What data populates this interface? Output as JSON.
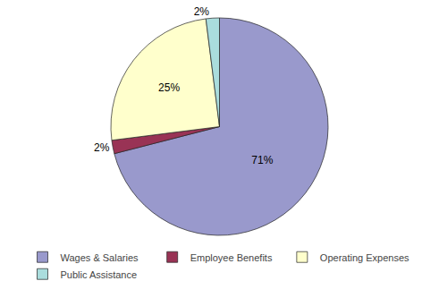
{
  "chart_data": {
    "type": "pie",
    "categories": [
      "Wages & Salaries",
      "Employee Benefits",
      "Operating Expenses",
      "Public Assistance"
    ],
    "values": [
      71,
      2,
      25,
      2
    ],
    "value_labels": [
      "71%",
      "2%",
      "25%",
      "2%"
    ],
    "colors": [
      "#9999cc",
      "#993355",
      "#ffffcc",
      "#aadddd"
    ],
    "data_labels": true,
    "legend": "bottom"
  }
}
